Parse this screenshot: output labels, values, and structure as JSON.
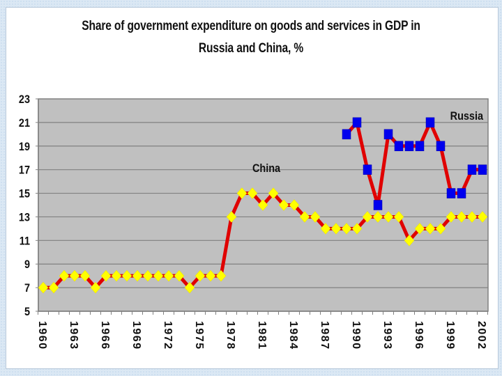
{
  "title_line1": "Share of government expenditure on goods and services in GDP in",
  "title_line2": "Russia and China, %",
  "chart_data": {
    "type": "line",
    "title": "Share of government expenditure on goods and services in GDP in Russia and China, %",
    "xlabel": "",
    "ylabel": "",
    "ylim": [
      5,
      23
    ],
    "yticks": [
      5,
      7,
      9,
      11,
      13,
      15,
      17,
      19,
      21,
      23
    ],
    "xlim": [
      1960,
      2002
    ],
    "xtick_labels": [
      "1960",
      "1963",
      "1966",
      "1969",
      "1972",
      "1975",
      "1978",
      "1981",
      "1984",
      "1987",
      "1990",
      "1993",
      "1996",
      "1999",
      "2002"
    ],
    "grid": true,
    "plot_background": "#c0c0c0",
    "series": [
      {
        "name": "China",
        "label": "China",
        "line_color": "#e00000",
        "marker": "diamond",
        "marker_color": "#ffff00",
        "x": [
          1960,
          1961,
          1962,
          1963,
          1964,
          1965,
          1966,
          1967,
          1968,
          1969,
          1970,
          1971,
          1972,
          1973,
          1974,
          1975,
          1976,
          1977,
          1978,
          1979,
          1980,
          1981,
          1982,
          1983,
          1984,
          1985,
          1986,
          1987,
          1988,
          1989,
          1990,
          1991,
          1992,
          1993,
          1994,
          1995,
          1996,
          1997,
          1998,
          1999,
          2000,
          2001,
          2002
        ],
        "values": [
          7,
          7,
          8,
          8,
          8,
          7,
          8,
          8,
          8,
          8,
          8,
          8,
          8,
          8,
          7,
          8,
          8,
          8,
          13,
          15,
          15,
          14,
          15,
          14,
          14,
          13,
          13,
          12,
          12,
          12,
          12,
          13,
          13,
          13,
          13,
          11,
          12,
          12,
          12,
          13,
          13,
          13,
          13
        ]
      },
      {
        "name": "Russia",
        "label": "Russia",
        "line_color": "#e00000",
        "marker": "square",
        "marker_color": "#0000ee",
        "x": [
          1989,
          1990,
          1991,
          1992,
          1993,
          1994,
          1995,
          1996,
          1997,
          1998,
          1999,
          2000,
          2001,
          2002
        ],
        "values": [
          20,
          21,
          17,
          14,
          20,
          19,
          19,
          19,
          21,
          19,
          15,
          15,
          17,
          17
        ]
      }
    ],
    "annotations": [
      {
        "text": "China",
        "series": "China"
      },
      {
        "text": "Russia",
        "series": "Russia"
      }
    ]
  }
}
